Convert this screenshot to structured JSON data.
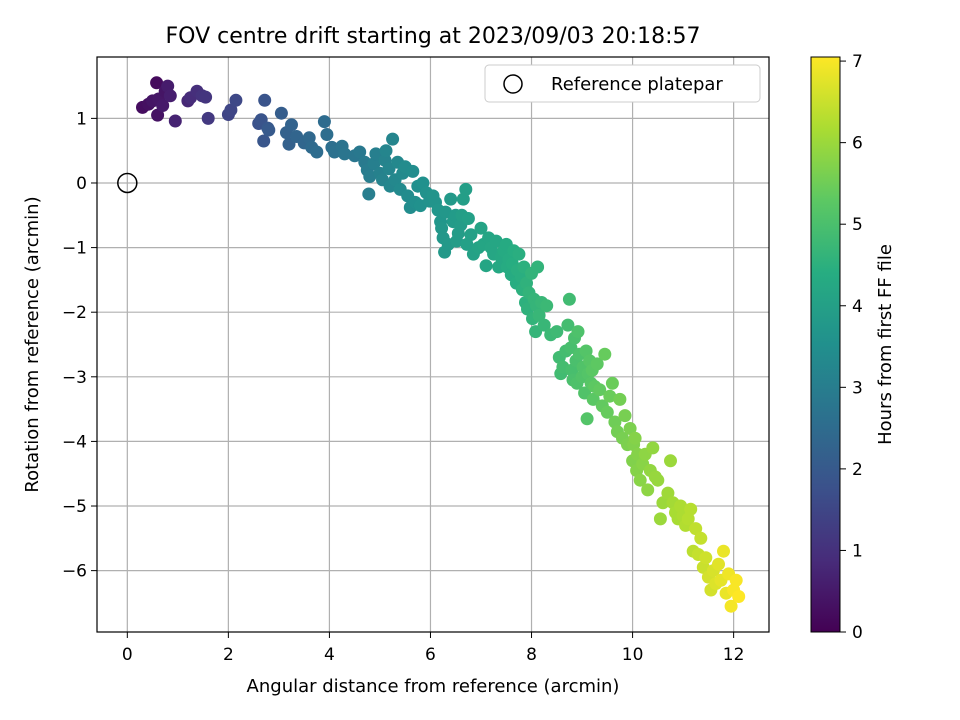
{
  "chart_data": {
    "type": "scatter",
    "title": "FOV centre drift starting at 2023/09/03 20:18:57",
    "xlabel": "Angular distance from reference (arcmin)",
    "ylabel": "Rotation from reference (arcmin)",
    "colorbar_label": "Hours from first FF file",
    "colormap": "viridis",
    "xlim": [
      -0.6,
      12.7
    ],
    "ylim": [
      -6.95,
      1.95
    ],
    "clim": [
      0,
      7.05
    ],
    "x_ticks": [
      0,
      2,
      4,
      6,
      8,
      10,
      12
    ],
    "y_ticks": [
      1,
      0,
      -1,
      -2,
      -3,
      -4,
      -5,
      -6
    ],
    "colorbar_ticks": [
      0,
      1,
      2,
      3,
      4,
      5,
      6,
      7
    ],
    "grid": true,
    "legend": {
      "position": "top-right",
      "label": "Reference platepar"
    },
    "reference_point": {
      "x": 0,
      "y": 0
    },
    "points": [
      [
        0.3,
        1.17,
        0.25
      ],
      [
        0.42,
        1.22,
        0.3
      ],
      [
        0.5,
        1.27,
        0.4
      ],
      [
        0.58,
        1.55,
        0.2
      ],
      [
        0.6,
        1.05,
        0.35
      ],
      [
        0.62,
        1.3,
        0.45
      ],
      [
        0.7,
        1.2,
        0.5
      ],
      [
        0.75,
        1.42,
        0.4
      ],
      [
        0.8,
        1.5,
        0.55
      ],
      [
        0.85,
        1.35,
        0.6
      ],
      [
        0.95,
        0.96,
        0.7
      ],
      [
        1.2,
        1.27,
        0.8
      ],
      [
        1.25,
        1.32,
        0.9
      ],
      [
        1.38,
        1.42,
        0.95
      ],
      [
        1.48,
        1.35,
        1.05
      ],
      [
        1.55,
        1.33,
        1.1
      ],
      [
        1.6,
        1.0,
        1.2
      ],
      [
        2.0,
        1.06,
        1.45
      ],
      [
        2.05,
        1.13,
        1.5
      ],
      [
        2.15,
        1.28,
        1.55
      ],
      [
        2.6,
        0.92,
        1.8
      ],
      [
        2.65,
        0.98,
        1.85
      ],
      [
        2.7,
        0.65,
        1.9
      ],
      [
        2.72,
        1.28,
        1.85
      ],
      [
        2.78,
        0.85,
        1.95
      ],
      [
        2.8,
        0.82,
        2.0
      ],
      [
        3.05,
        1.08,
        2.1
      ],
      [
        3.15,
        0.78,
        2.2
      ],
      [
        3.2,
        0.6,
        2.2
      ],
      [
        3.25,
        0.9,
        2.25
      ],
      [
        3.35,
        0.72,
        2.3
      ],
      [
        3.5,
        0.62,
        2.35
      ],
      [
        3.6,
        0.7,
        2.4
      ],
      [
        3.65,
        0.55,
        2.45
      ],
      [
        3.75,
        0.48,
        2.5
      ],
      [
        3.9,
        0.95,
        2.5
      ],
      [
        3.95,
        0.75,
        2.55
      ],
      [
        4.05,
        0.55,
        2.6
      ],
      [
        4.1,
        0.48,
        2.65
      ],
      [
        4.25,
        0.57,
        2.7
      ],
      [
        4.3,
        0.45,
        2.75
      ],
      [
        4.5,
        0.42,
        2.8
      ],
      [
        4.6,
        0.48,
        2.85
      ],
      [
        4.7,
        0.32,
        2.9
      ],
      [
        4.75,
        0.2,
        2.95
      ],
      [
        4.78,
        -0.17,
        3.0
      ],
      [
        4.8,
        0.1,
        3.0
      ],
      [
        4.88,
        0.3,
        3.05
      ],
      [
        4.92,
        0.45,
        3.05
      ],
      [
        5.0,
        0.15,
        3.1
      ],
      [
        5.05,
        0.05,
        3.15
      ],
      [
        5.1,
        0.35,
        3.15
      ],
      [
        5.12,
        0.5,
        3.2
      ],
      [
        5.18,
        0.22,
        3.2
      ],
      [
        5.2,
        -0.05,
        3.25
      ],
      [
        5.25,
        0.68,
        3.2
      ],
      [
        5.3,
        0.05,
        3.3
      ],
      [
        5.35,
        0.32,
        3.3
      ],
      [
        5.4,
        -0.1,
        3.35
      ],
      [
        5.45,
        0.15,
        3.35
      ],
      [
        5.5,
        0.25,
        3.4
      ],
      [
        5.55,
        -0.2,
        3.4
      ],
      [
        5.6,
        -0.38,
        3.45
      ],
      [
        5.65,
        0.18,
        3.45
      ],
      [
        5.7,
        -0.3,
        3.5
      ],
      [
        5.75,
        -0.05,
        3.5
      ],
      [
        5.8,
        -0.35,
        3.55
      ],
      [
        5.85,
        0.0,
        3.55
      ],
      [
        5.92,
        -0.15,
        3.6
      ],
      [
        5.98,
        -0.28,
        3.6
      ],
      [
        6.05,
        -0.2,
        3.65
      ],
      [
        6.1,
        -0.3,
        3.65
      ],
      [
        6.15,
        -0.42,
        3.7
      ],
      [
        6.2,
        -0.6,
        3.7
      ],
      [
        6.22,
        -0.7,
        3.75
      ],
      [
        6.25,
        -0.85,
        3.75
      ],
      [
        6.28,
        -1.07,
        3.8
      ],
      [
        6.3,
        -0.45,
        3.75
      ],
      [
        6.35,
        -0.95,
        3.8
      ],
      [
        6.4,
        -0.25,
        3.8
      ],
      [
        6.45,
        -0.6,
        3.85
      ],
      [
        6.5,
        -0.5,
        3.85
      ],
      [
        6.52,
        -0.9,
        3.9
      ],
      [
        6.55,
        -0.78,
        3.9
      ],
      [
        6.6,
        -0.65,
        3.9
      ],
      [
        6.62,
        -0.5,
        3.95
      ],
      [
        6.65,
        -0.25,
        3.95
      ],
      [
        6.7,
        -0.1,
        3.95
      ],
      [
        6.72,
        -0.95,
        4.0
      ],
      [
        6.75,
        -0.55,
        4.0
      ],
      [
        6.8,
        -0.8,
        4.0
      ],
      [
        6.85,
        -1.1,
        4.05
      ],
      [
        6.95,
        -1.0,
        4.1
      ],
      [
        7.0,
        -0.7,
        4.1
      ],
      [
        7.05,
        -0.95,
        4.15
      ],
      [
        7.1,
        -1.28,
        4.15
      ],
      [
        7.15,
        -0.85,
        4.15
      ],
      [
        7.2,
        -1.0,
        4.2
      ],
      [
        7.25,
        -1.1,
        4.2
      ],
      [
        7.3,
        -0.9,
        4.2
      ],
      [
        7.35,
        -1.3,
        4.25
      ],
      [
        7.4,
        -1.15,
        4.25
      ],
      [
        7.45,
        -1.05,
        4.3
      ],
      [
        7.5,
        -0.95,
        4.3
      ],
      [
        7.52,
        -1.3,
        4.35
      ],
      [
        7.55,
        -1.18,
        4.35
      ],
      [
        7.6,
        -1.42,
        4.35
      ],
      [
        7.62,
        -1.25,
        4.4
      ],
      [
        7.65,
        -1.05,
        4.4
      ],
      [
        7.7,
        -1.55,
        4.4
      ],
      [
        7.72,
        -1.35,
        4.45
      ],
      [
        7.75,
        -1.1,
        4.45
      ],
      [
        7.8,
        -1.45,
        4.45
      ],
      [
        7.82,
        -1.65,
        4.5
      ],
      [
        7.85,
        -1.3,
        4.5
      ],
      [
        7.88,
        -1.85,
        4.5
      ],
      [
        7.9,
        -1.55,
        4.55
      ],
      [
        7.92,
        -1.95,
        4.55
      ],
      [
        7.95,
        -1.7,
        4.6
      ],
      [
        8.0,
        -1.4,
        4.6
      ],
      [
        8.02,
        -2.1,
        4.6
      ],
      [
        8.05,
        -1.8,
        4.65
      ],
      [
        8.08,
        -2.3,
        4.65
      ],
      [
        8.1,
        -1.9,
        4.65
      ],
      [
        8.12,
        -1.3,
        4.6
      ],
      [
        8.15,
        -2.05,
        4.7
      ],
      [
        8.2,
        -1.85,
        4.7
      ],
      [
        8.25,
        -2.2,
        4.7
      ],
      [
        8.3,
        -1.9,
        4.75
      ],
      [
        8.38,
        -2.35,
        4.75
      ],
      [
        8.5,
        -2.3,
        4.8
      ],
      [
        8.55,
        -2.7,
        4.85
      ],
      [
        8.58,
        -2.95,
        4.85
      ],
      [
        8.62,
        -2.85,
        4.9
      ],
      [
        8.68,
        -2.6,
        4.9
      ],
      [
        8.72,
        -2.2,
        4.9
      ],
      [
        8.75,
        -1.8,
        4.85
      ],
      [
        8.78,
        -2.55,
        4.95
      ],
      [
        8.8,
        -2.9,
        4.95
      ],
      [
        8.82,
        -3.05,
        5.0
      ],
      [
        8.85,
        -2.4,
        5.0
      ],
      [
        8.88,
        -2.75,
        5.0
      ],
      [
        8.9,
        -3.1,
        5.05
      ],
      [
        8.92,
        -2.3,
        5.05
      ],
      [
        8.95,
        -2.65,
        5.05
      ],
      [
        9.0,
        -3.0,
        5.1
      ],
      [
        9.02,
        -2.85,
        5.1
      ],
      [
        9.05,
        -3.25,
        5.1
      ],
      [
        9.08,
        -2.6,
        5.15
      ],
      [
        9.1,
        -3.65,
        5.15
      ],
      [
        9.12,
        -2.95,
        5.15
      ],
      [
        9.15,
        -2.75,
        5.2
      ],
      [
        9.18,
        -3.1,
        5.2
      ],
      [
        9.2,
        -2.9,
        5.25
      ],
      [
        9.22,
        -3.35,
        5.25
      ],
      [
        9.25,
        -3.15,
        5.3
      ],
      [
        9.3,
        -2.8,
        5.3
      ],
      [
        9.35,
        -3.2,
        5.35
      ],
      [
        9.4,
        -3.45,
        5.35
      ],
      [
        9.45,
        -2.65,
        5.4
      ],
      [
        9.5,
        -3.55,
        5.4
      ],
      [
        9.55,
        -3.3,
        5.45
      ],
      [
        9.6,
        -3.1,
        5.45
      ],
      [
        9.65,
        -3.7,
        5.5
      ],
      [
        9.7,
        -3.85,
        5.55
      ],
      [
        9.75,
        -3.35,
        5.55
      ],
      [
        9.8,
        -3.95,
        5.6
      ],
      [
        9.85,
        -3.6,
        5.6
      ],
      [
        9.9,
        -4.05,
        5.65
      ],
      [
        9.95,
        -3.8,
        5.65
      ],
      [
        10.0,
        -4.3,
        5.7
      ],
      [
        10.02,
        -4.05,
        5.7
      ],
      [
        10.05,
        -3.95,
        5.75
      ],
      [
        10.08,
        -4.45,
        5.75
      ],
      [
        10.1,
        -4.2,
        5.75
      ],
      [
        10.15,
        -4.6,
        5.8
      ],
      [
        10.2,
        -4.35,
        5.8
      ],
      [
        10.25,
        -4.2,
        5.85
      ],
      [
        10.3,
        -4.75,
        5.85
      ],
      [
        10.35,
        -4.45,
        5.9
      ],
      [
        10.4,
        -4.1,
        5.9
      ],
      [
        10.45,
        -4.55,
        5.95
      ],
      [
        10.5,
        -4.6,
        5.95
      ],
      [
        10.55,
        -5.2,
        6.0
      ],
      [
        10.6,
        -4.95,
        6.0
      ],
      [
        10.7,
        -4.8,
        6.05
      ],
      [
        10.75,
        -4.3,
        6.0
      ],
      [
        10.8,
        -4.95,
        6.1
      ],
      [
        10.85,
        -5.1,
        6.15
      ],
      [
        10.9,
        -5.2,
        6.15
      ],
      [
        10.95,
        -5.0,
        6.2
      ],
      [
        11.0,
        -5.15,
        6.2
      ],
      [
        11.05,
        -5.3,
        6.25
      ],
      [
        11.1,
        -5.2,
        6.3
      ],
      [
        11.15,
        -5.05,
        6.3
      ],
      [
        11.2,
        -5.7,
        6.35
      ],
      [
        11.25,
        -5.35,
        6.4
      ],
      [
        11.3,
        -5.75,
        6.45
      ],
      [
        11.35,
        -5.5,
        6.45
      ],
      [
        11.4,
        -5.95,
        6.5
      ],
      [
        11.45,
        -5.8,
        6.55
      ],
      [
        11.5,
        -6.1,
        6.6
      ],
      [
        11.55,
        -6.3,
        6.6
      ],
      [
        11.6,
        -6.0,
        6.65
      ],
      [
        11.65,
        -6.2,
        6.7
      ],
      [
        11.7,
        -5.9,
        6.75
      ],
      [
        11.75,
        -6.15,
        6.8
      ],
      [
        11.8,
        -5.7,
        6.85
      ],
      [
        11.85,
        -6.35,
        6.85
      ],
      [
        11.9,
        -6.05,
        6.9
      ],
      [
        11.95,
        -6.55,
        6.95
      ],
      [
        12.0,
        -6.3,
        7.0
      ],
      [
        12.05,
        -6.15,
        7.0
      ],
      [
        12.1,
        -6.4,
        7.05
      ]
    ]
  }
}
